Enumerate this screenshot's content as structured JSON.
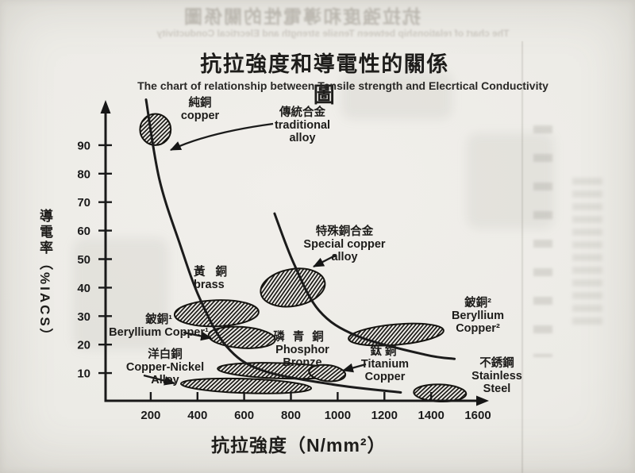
{
  "page": {
    "title": "抗拉強度和導電性的關係圖",
    "subtitle": "The chart of relationship between Tensile strength and Elecrtical Conductivity"
  },
  "chart_data": {
    "type": "scatter",
    "title": "抗拉強度和導電性的關係圖",
    "subtitle": "The chart of relationship between Tensile strength and Elecrtical Conductivity",
    "xlabel": "抗拉強度（N/mm²）",
    "ylabel": "導電率（%IACS）",
    "x_ticks": [
      200,
      400,
      600,
      800,
      1000,
      1200,
      1400,
      1600
    ],
    "y_ticks": [
      10,
      20,
      30,
      40,
      50,
      60,
      70,
      80,
      90
    ],
    "xlim": [
      0,
      1700
    ],
    "ylim": [
      0,
      108
    ],
    "grid": false,
    "legend_position": "none",
    "regions": [
      {
        "id": "pure-copper",
        "label_zh": "純銅",
        "label_en": "copper",
        "x_range": [
          154,
          286
        ],
        "y_range": [
          90,
          101
        ],
        "tilt": 0
      },
      {
        "id": "brass",
        "label_zh": "黃銅",
        "label_en": "brass",
        "x_range": [
          302,
          662
        ],
        "y_range": [
          26.4,
          35.6
        ],
        "tilt": -2
      },
      {
        "id": "special-copper-alloy",
        "label_zh": "特殊銅合金",
        "label_en": "Special copper alloy",
        "x_range": [
          669,
          947
        ],
        "y_range": [
          33.5,
          46.5
        ],
        "tilt": -10
      },
      {
        "id": "beryllium-copper-1",
        "label_zh": "鈹銅¹",
        "label_en": "Beryllium Copper¹",
        "x_range": [
          447,
          733
        ],
        "y_range": [
          18.8,
          26.2
        ],
        "tilt": 4
      },
      {
        "id": "phosphor-bronze",
        "label_zh": "磷青銅",
        "label_en": "Phosphor Bronze",
        "x_range": [
          486,
          1022
        ],
        "y_range": [
          8.1,
          13.5
        ],
        "tilt": 2
      },
      {
        "id": "copper-nickel-alloy",
        "label_zh": "洋白銅",
        "label_en": "Copper-Nickel Alloy",
        "x_range": [
          329,
          887
        ],
        "y_range": [
          3,
          8
        ],
        "tilt": 2
      },
      {
        "id": "beryllium-copper-2",
        "label_zh": "鈹銅²",
        "label_en": "Beryllium Copper²",
        "x_range": [
          1046,
          1454
        ],
        "y_range": [
          19.9,
          27.1
        ],
        "tilt": -5
      },
      {
        "id": "titanium-copper",
        "label_zh": "鈦銅",
        "label_en": "Titanium Copper",
        "x_range": [
          877,
          1033
        ],
        "y_range": [
          7.2,
          12.8
        ],
        "tilt": 6
      },
      {
        "id": "stainless-steel",
        "label_zh": "不銹鋼",
        "label_en": "Stainless Steel",
        "x_range": [
          1326,
          1550
        ],
        "y_range": [
          0,
          6
        ],
        "tilt": 2
      }
    ],
    "curves": [
      {
        "id": "traditional-alloy",
        "label_zh": "傳統合金",
        "label_en": "traditional alloy",
        "points": [
          [
            180,
            106
          ],
          [
            237,
            78
          ],
          [
            326,
            55
          ],
          [
            411,
            36
          ],
          [
            523,
            19.5
          ],
          [
            676,
            11
          ],
          [
            980,
            6
          ],
          [
            1270,
            3.2
          ]
        ]
      },
      {
        "id": "special-copper-alloy",
        "label_zh": "特殊銅合金",
        "label_en": "Special copper alloy",
        "points": [
          [
            730,
            66
          ],
          [
            812,
            48.5
          ],
          [
            920,
            32
          ],
          [
            1084,
            23
          ],
          [
            1373,
            16.5
          ],
          [
            1500,
            15
          ]
        ]
      }
    ]
  },
  "scan_artifacts": {
    "bleed_title": "抗拉強度和導電性的關係圖",
    "bleed_subtitle": "The chart of relationship between Tensile strength and Elecrtical Conductivity"
  }
}
